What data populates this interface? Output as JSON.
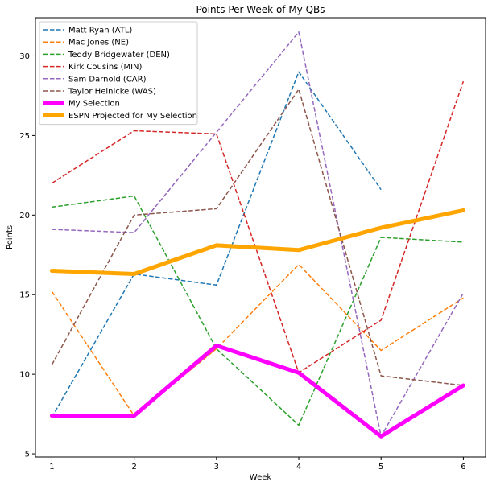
{
  "chart_data": {
    "type": "line",
    "title": "Points Per Week of My QBs",
    "xlabel": "Week",
    "ylabel": "Points",
    "x": [
      1,
      2,
      3,
      4,
      5,
      6
    ],
    "xlim": [
      0.8,
      6.27
    ],
    "ylim": [
      4.8,
      32.4
    ],
    "xticks": [
      1,
      2,
      3,
      4,
      5,
      6
    ],
    "yticks": [
      5,
      10,
      15,
      20,
      25,
      30
    ],
    "grid": false,
    "legend_position": "top-left",
    "series": [
      {
        "name": "Matt Ryan (ATL)",
        "values": [
          7.3,
          16.3,
          15.6,
          29.0,
          21.6,
          null
        ],
        "color": "#1f77b4",
        "style": "dashed",
        "width": 1.5
      },
      {
        "name": "Mac Jones (NE)",
        "values": [
          15.2,
          7.4,
          11.6,
          16.9,
          11.5,
          14.8
        ],
        "color": "#ff7f0e",
        "style": "dashed",
        "width": 1.5
      },
      {
        "name": "Teddy Bridgewater (DEN)",
        "values": [
          20.5,
          21.2,
          11.6,
          6.8,
          18.6,
          18.3
        ],
        "color": "#2ca02c",
        "style": "dashed",
        "width": 1.5
      },
      {
        "name": "Kirk Cousins (MIN)",
        "values": [
          22.0,
          25.3,
          25.1,
          10.1,
          13.4,
          28.4
        ],
        "color": "#d62728",
        "style": "dashed",
        "width": 1.5
      },
      {
        "name": "Sam Darnold (CAR)",
        "values": [
          19.1,
          18.9,
          25.2,
          31.5,
          6.1,
          15.1
        ],
        "color": "#9467bd",
        "style": "dashed",
        "width": 1.5
      },
      {
        "name": "Taylor Heinicke (WAS)",
        "values": [
          10.6,
          20.0,
          20.4,
          27.9,
          9.9,
          9.3
        ],
        "color": "#8c564b",
        "style": "dashed",
        "width": 1.5
      },
      {
        "name": "My Selection",
        "values": [
          7.4,
          7.4,
          11.8,
          10.1,
          6.1,
          9.3
        ],
        "color": "#ff00ff",
        "style": "solid",
        "width": 5
      },
      {
        "name": "ESPN Projected for My Selection",
        "values": [
          16.5,
          16.3,
          18.1,
          17.8,
          19.2,
          20.3
        ],
        "color": "#ffa500",
        "style": "solid",
        "width": 5
      }
    ]
  }
}
